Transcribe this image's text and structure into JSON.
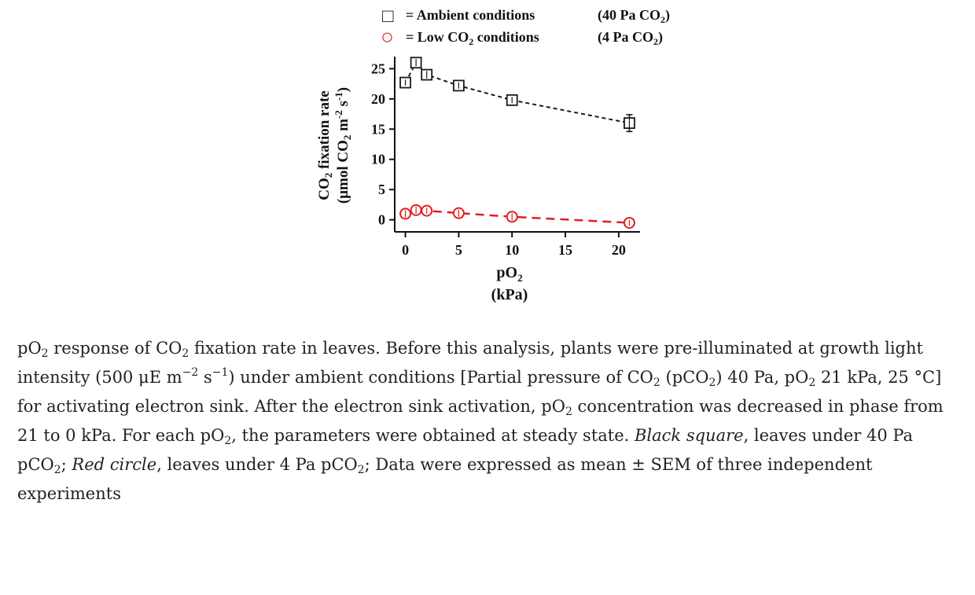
{
  "chart_data": {
    "type": "scatter",
    "title": "",
    "xlabel": {
      "main": "pO",
      "sub": "2",
      "unit": "(kPa)"
    },
    "ylabel": {
      "line1": {
        "pre": "CO",
        "sub": "2",
        "post": " fixation rate"
      },
      "line2": {
        "pre": "(μmol CO",
        "sub1": "2",
        "mid": " m",
        "sup1": "-2",
        "mid2": " s",
        "sup2": "-1",
        "post": ")"
      }
    },
    "xlim": [
      -1,
      22
    ],
    "ylim": [
      -2,
      27
    ],
    "xticks": [
      0,
      5,
      10,
      15,
      20
    ],
    "yticks": [
      0,
      5,
      10,
      15,
      20,
      25
    ],
    "grid": false,
    "legend_position": "top",
    "series": [
      {
        "name": "Ambient conditions",
        "legend": {
          "symbol": "□",
          "eq": "= ",
          "label": "Ambient conditions",
          "cond": {
            "pre": "(40 Pa CO",
            "sub": "2",
            "post": ")"
          }
        },
        "marker": "square",
        "color": "#1a1a1a",
        "line_style": "dashed",
        "x": [
          0,
          1,
          2,
          5,
          10,
          21
        ],
        "y": [
          22.7,
          26.0,
          24.0,
          22.2,
          19.8,
          16.0
        ],
        "err": [
          0.5,
          0.6,
          0.6,
          0.5,
          0.5,
          1.4
        ]
      },
      {
        "name": "Low CO2 conditions",
        "legend": {
          "symbol": "○",
          "eq": "= ",
          "label": {
            "pre": "Low CO",
            "sub": "2",
            "post": " conditions"
          },
          "cond": {
            "pre": "(4 Pa CO",
            "sub": "2",
            "post": ")"
          }
        },
        "marker": "circle",
        "color": "#e02020",
        "line_style": "dashed",
        "x": [
          0,
          1,
          2,
          5,
          10,
          21
        ],
        "y": [
          1.0,
          1.6,
          1.5,
          1.1,
          0.5,
          -0.5
        ],
        "err": [
          0.6,
          0.6,
          0.5,
          0.6,
          0.6,
          0.5
        ]
      }
    ]
  },
  "caption": {
    "p1": "pO",
    "p2": "2",
    "p3": " response of CO",
    "p4": "2",
    "p5": " fixation rate in leaves. Before this analysis, plants were pre-illuminated at growth light intensity (500 μE m",
    "p6": "−2",
    "p7": " s",
    "p8": "−1",
    "p9": ") under ambient conditions [Partial pressure of CO",
    "p10": "2",
    "p11": " (pCO",
    "p12": "2",
    "p13": ") 40 Pa, pO",
    "p14": "2",
    "p15": " 21 kPa, 25 °C] for activating electron sink. After the electron sink activation, pO",
    "p16": "2",
    "p17": " concentration was decreased in phase from 21 to 0 kPa. For each pO",
    "p18": "2",
    "p19": ", the parameters were obtained at steady state. ",
    "p20": "Black square",
    "p21": ", leaves under 40 Pa pCO",
    "p22": "2",
    "p23": "; ",
    "p24": "Red circle",
    "p25": ", leaves under 4 Pa pCO",
    "p26": "2",
    "p27": "; Data were expressed as mean ± SEM of three independent experiments"
  }
}
